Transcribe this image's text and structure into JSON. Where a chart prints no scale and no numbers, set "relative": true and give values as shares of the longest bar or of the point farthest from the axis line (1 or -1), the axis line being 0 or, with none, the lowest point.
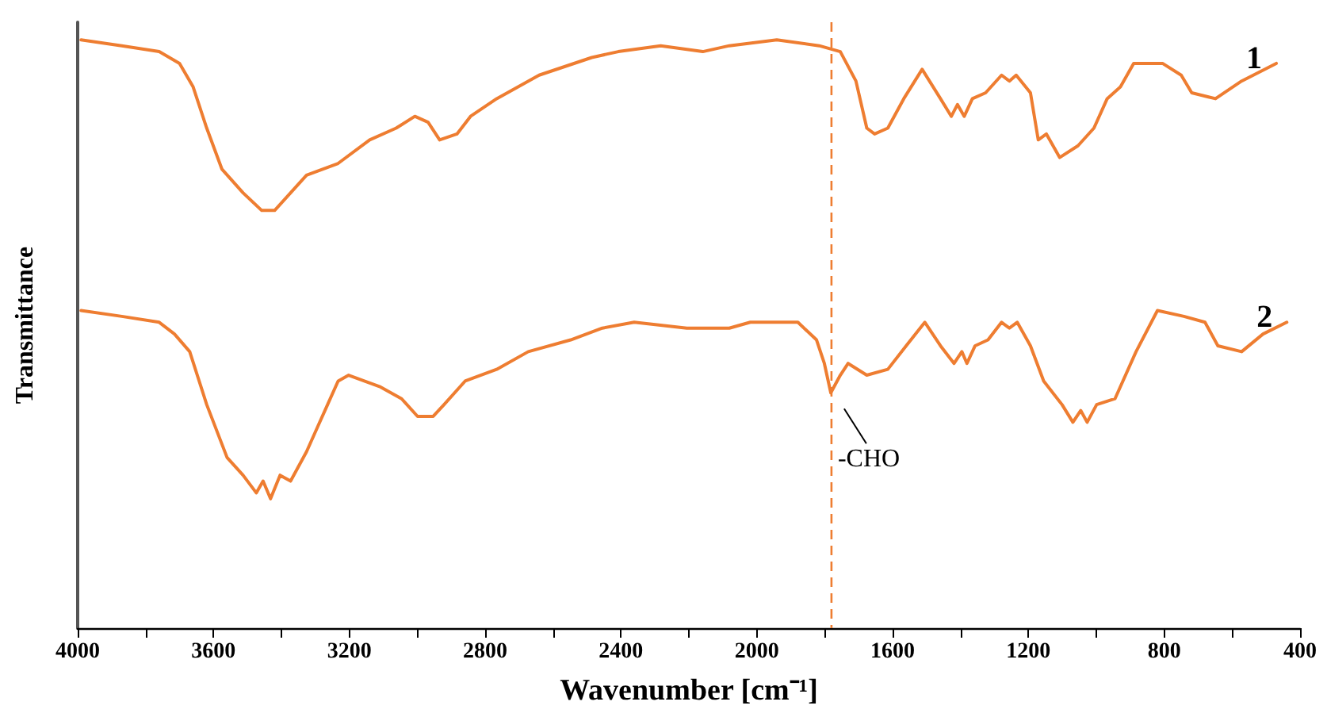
{
  "chart_data": {
    "type": "line",
    "relative": true,
    "xlabel": "Wavenumber [cm⁻¹]",
    "ylabel": "Transmittance",
    "xlim": [
      4000,
      400
    ],
    "xticks": [
      4000,
      {
        "value": 3800,
        "label": null
      },
      3600,
      {
        "value": 3400,
        "label": null
      },
      3200,
      {
        "value": 3000,
        "label": null
      },
      2800,
      {
        "value": 2600,
        "label": null
      },
      2400,
      {
        "value": 2200,
        "label": null
      },
      2000,
      {
        "value": 1800,
        "label": null
      },
      1600,
      {
        "value": 1400,
        "label": null
      },
      1200,
      {
        "value": 1000,
        "label": null
      },
      800,
      {
        "value": 600,
        "label": null
      },
      400
    ],
    "grid": false,
    "legend": false,
    "marker": "none",
    "line_style": "solid",
    "ref_lines": [
      {
        "axis": "x",
        "value": 1780,
        "color": "#ee7d31",
        "line_style": "dashed"
      }
    ],
    "annotations": [
      {
        "text": "-CHO",
        "x": 1780,
        "y": 0.4
      }
    ],
    "series": [
      {
        "name": "1",
        "color": "#ee7d31",
        "x": [
          3990,
          3870,
          3760,
          3700,
          3660,
          3620,
          3575,
          3513,
          3458,
          3420,
          3373,
          3326,
          3233,
          3140,
          3062,
          3007,
          2968,
          2934,
          2883,
          2843,
          2766,
          2641,
          2486,
          2408,
          2283,
          2159,
          2081,
          1941,
          1816,
          1754,
          1708,
          1676,
          1653,
          1614,
          1567,
          1513,
          1459,
          1427,
          1409,
          1389,
          1365,
          1326,
          1279,
          1256,
          1236,
          1194,
          1171,
          1147,
          1108,
          1054,
          1007,
          968,
          929,
          890,
          805,
          750,
          719,
          649,
          572,
          470
        ],
        "values": [
          1.0,
          0.99,
          0.98,
          0.96,
          0.92,
          0.85,
          0.78,
          0.74,
          0.71,
          0.71,
          0.74,
          0.77,
          0.79,
          0.83,
          0.85,
          0.87,
          0.86,
          0.83,
          0.84,
          0.87,
          0.9,
          0.94,
          0.97,
          0.98,
          0.99,
          0.98,
          0.99,
          1.0,
          0.99,
          0.98,
          0.93,
          0.85,
          0.84,
          0.85,
          0.9,
          0.95,
          0.9,
          0.87,
          0.89,
          0.87,
          0.9,
          0.91,
          0.94,
          0.93,
          0.94,
          0.91,
          0.83,
          0.84,
          0.8,
          0.82,
          0.85,
          0.9,
          0.92,
          0.96,
          0.96,
          0.94,
          0.91,
          0.9,
          0.93,
          0.96
        ]
      },
      {
        "name": "2",
        "color": "#ee7d31",
        "x": [
          3990,
          3870,
          3760,
          3715,
          3670,
          3620,
          3560,
          3513,
          3474,
          3454,
          3432,
          3404,
          3373,
          3326,
          3295,
          3264,
          3233,
          3202,
          3108,
          3046,
          2999,
          2953,
          2921,
          2859,
          2766,
          2673,
          2548,
          2455,
          2361,
          2206,
          2081,
          2019,
          1879,
          1824,
          1801,
          1782,
          1754,
          1731,
          1676,
          1614,
          1560,
          1505,
          1459,
          1419,
          1396,
          1381,
          1357,
          1319,
          1279,
          1256,
          1233,
          1194,
          1155,
          1101,
          1069,
          1046,
          1027,
          999,
          945,
          883,
          820,
          742,
          680,
          642,
          572,
          509,
          439
        ],
        "values": [
          0.54,
          0.53,
          0.52,
          0.5,
          0.47,
          0.38,
          0.29,
          0.26,
          0.23,
          0.25,
          0.22,
          0.26,
          0.25,
          0.3,
          0.34,
          0.38,
          0.42,
          0.43,
          0.41,
          0.39,
          0.36,
          0.36,
          0.38,
          0.42,
          0.44,
          0.47,
          0.49,
          0.51,
          0.52,
          0.51,
          0.51,
          0.52,
          0.52,
          0.49,
          0.45,
          0.4,
          0.43,
          0.45,
          0.43,
          0.44,
          0.48,
          0.52,
          0.48,
          0.45,
          0.47,
          0.45,
          0.48,
          0.49,
          0.52,
          0.51,
          0.52,
          0.48,
          0.42,
          0.38,
          0.35,
          0.37,
          0.35,
          0.38,
          0.39,
          0.47,
          0.54,
          0.53,
          0.52,
          0.48,
          0.47,
          0.5,
          0.52
        ]
      }
    ]
  }
}
